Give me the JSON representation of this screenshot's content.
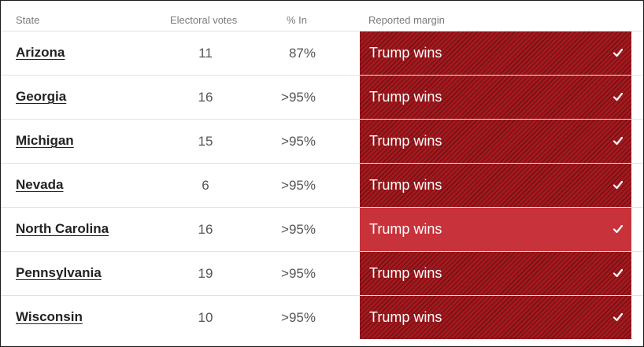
{
  "header": {
    "state": "State",
    "electoral_votes": "Electoral votes",
    "pct_in": "% In",
    "reported_margin": "Reported margin"
  },
  "colors": {
    "hatched_red": "#a3191e",
    "hatch_line": "#6e1014",
    "solid_red": "#c8323a"
  },
  "rows": [
    {
      "state": "Arizona",
      "ev": "11",
      "pct": "87%",
      "margin": "Trump wins",
      "fill": "hatched",
      "icon": "check-icon"
    },
    {
      "state": "Georgia",
      "ev": "16",
      "pct": ">95%",
      "margin": "Trump wins",
      "fill": "hatched",
      "icon": "check-icon"
    },
    {
      "state": "Michigan",
      "ev": "15",
      "pct": ">95%",
      "margin": "Trump wins",
      "fill": "hatched",
      "icon": "check-icon"
    },
    {
      "state": "Nevada",
      "ev": "6",
      "pct": ">95%",
      "margin": "Trump wins",
      "fill": "hatched",
      "icon": "check-icon"
    },
    {
      "state": "North Carolina",
      "ev": "16",
      "pct": ">95%",
      "margin": "Trump wins",
      "fill": "solid",
      "icon": "check-icon"
    },
    {
      "state": "Pennsylvania",
      "ev": "19",
      "pct": ">95%",
      "margin": "Trump wins",
      "fill": "hatched",
      "icon": "check-icon"
    },
    {
      "state": "Wisconsin",
      "ev": "10",
      "pct": ">95%",
      "margin": "Trump wins",
      "fill": "hatched",
      "icon": "check-icon"
    }
  ]
}
